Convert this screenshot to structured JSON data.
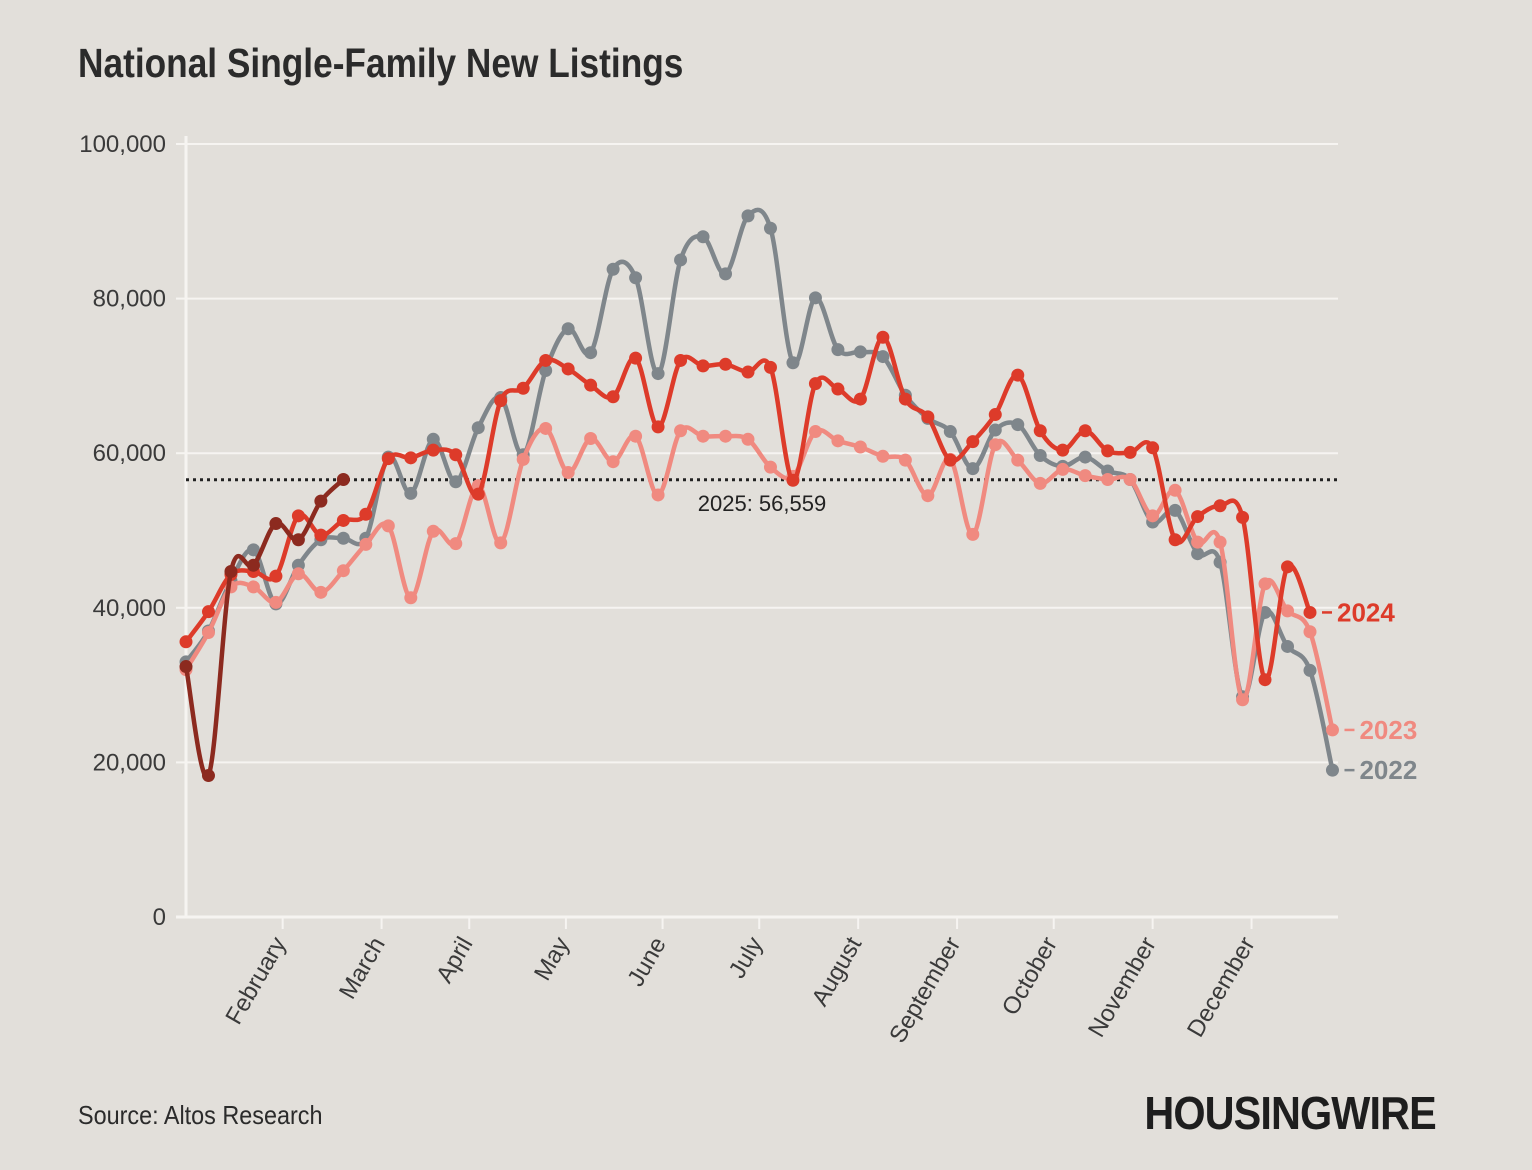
{
  "title": "National Single-Family New Listings",
  "source": "Source: Altos Research",
  "brand": "HOUSINGWIRE",
  "chart_data": {
    "type": "line",
    "title": "National Single-Family New Listings",
    "xlabel": "",
    "ylabel": "",
    "ylim": [
      0,
      100000
    ],
    "yticks": [
      0,
      20000,
      40000,
      60000,
      80000,
      100000
    ],
    "ytick_labels": [
      "0",
      "20,000",
      "40,000",
      "60,000",
      "80,000",
      "100,000"
    ],
    "x_unit": "week of year",
    "xlim": [
      1,
      53
    ],
    "months": [
      {
        "label": "February",
        "week": 5.3
      },
      {
        "label": "March",
        "week": 9.7
      },
      {
        "label": "April",
        "week": 13.6
      },
      {
        "label": "May",
        "week": 17.9
      },
      {
        "label": "June",
        "week": 22.2
      },
      {
        "label": "July",
        "week": 26.5
      },
      {
        "label": "August",
        "week": 30.9
      },
      {
        "label": "September",
        "week": 35.3
      },
      {
        "label": "October",
        "week": 39.6
      },
      {
        "label": "November",
        "week": 44.0
      },
      {
        "label": "December",
        "week": 48.4
      }
    ],
    "grid": true,
    "reference_line": {
      "value": 56559,
      "label": "2025: 56,559"
    },
    "series": [
      {
        "name": "2022",
        "color": "#7f868b",
        "values": [
          33000,
          37000,
          43500,
          47500,
          40500,
          45500,
          48800,
          49000,
          49000,
          59500,
          54800,
          61800,
          56300,
          63300,
          67200,
          59800,
          70700,
          76100,
          73000,
          83800,
          82700,
          70300,
          85000,
          88000,
          83200,
          90700,
          89100,
          71700,
          80100,
          73400,
          73100,
          72500,
          67500,
          64500,
          62800,
          58000,
          63000,
          63700,
          59700,
          58300,
          59500,
          57700,
          56600,
          51100,
          52600,
          47000,
          45900,
          28500,
          39400,
          35000,
          31900,
          19000
        ]
      },
      {
        "name": "2023",
        "color": "#f08a80",
        "values": [
          32000,
          36800,
          42700,
          42700,
          40700,
          44400,
          42000,
          44800,
          48200,
          50600,
          41300,
          49900,
          48300,
          55800,
          48400,
          59200,
          63200,
          57500,
          61900,
          58900,
          62200,
          54600,
          62900,
          62200,
          62200,
          61800,
          58200,
          57000,
          62800,
          61600,
          60800,
          59600,
          59100,
          54500,
          59200,
          49500,
          61100,
          59100,
          56100,
          57900,
          57100,
          56600,
          56600,
          51900,
          55200,
          48500,
          48500,
          28100,
          43100,
          39600,
          36900,
          24200
        ]
      },
      {
        "name": "2024",
        "color": "#dd3b2a",
        "values": [
          35600,
          39500,
          44300,
          44700,
          44100,
          51900,
          49400,
          51300,
          52100,
          59300,
          59400,
          60400,
          59800,
          54700,
          66800,
          68400,
          72000,
          70900,
          68800,
          67300,
          72300,
          63400,
          72000,
          71300,
          71500,
          70500,
          71100,
          56500,
          69000,
          68300,
          67000,
          75000,
          67000,
          64700,
          59100,
          61500,
          65000,
          70100,
          62900,
          60400,
          62900,
          60300,
          60100,
          60700,
          48800,
          51800,
          53200,
          51700,
          30700,
          45300,
          39400
        ]
      },
      {
        "name": "2025",
        "color": "#8c2a1f",
        "values": [
          32400,
          18300,
          44700,
          45500,
          50900,
          48800,
          53800,
          56600
        ]
      }
    ]
  }
}
